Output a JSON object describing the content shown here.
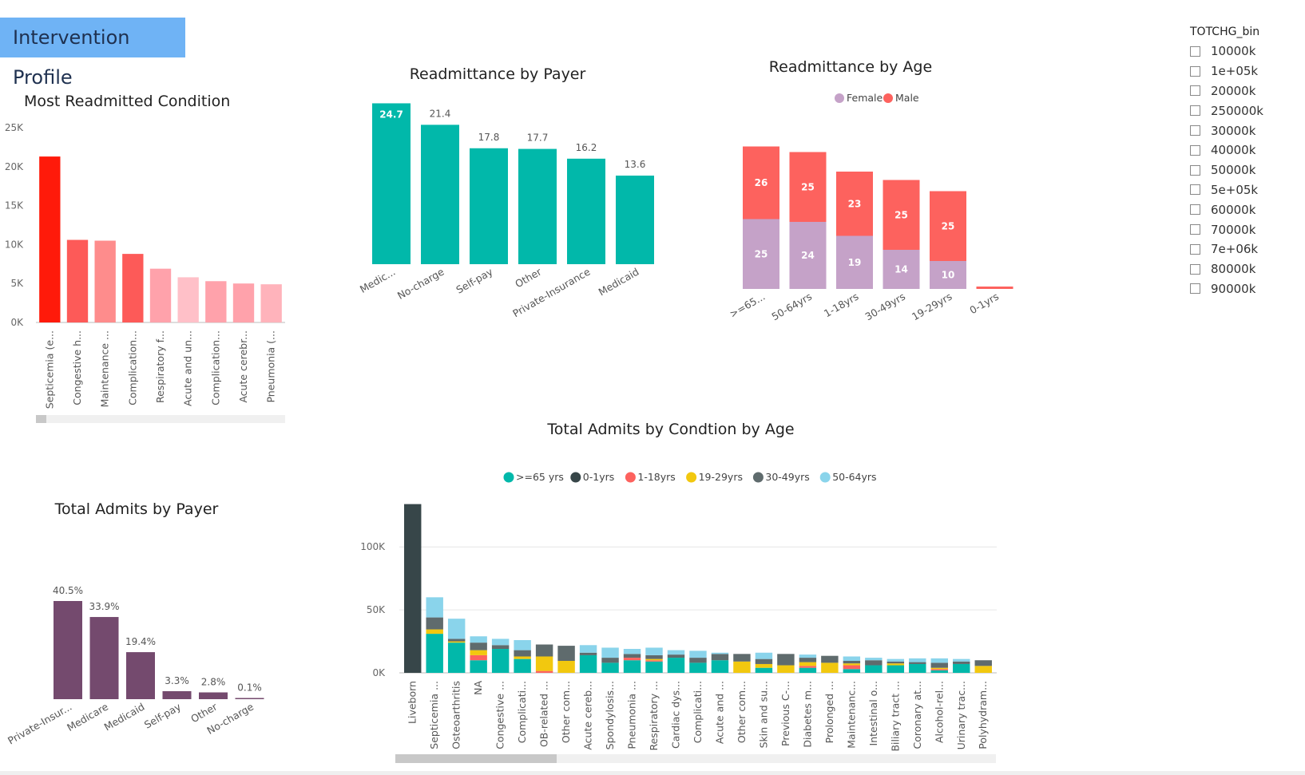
{
  "page": {
    "title": "Intervention Profile"
  },
  "slicer": {
    "title": "TOTCHG_bin",
    "items": [
      "10000k",
      "1e+05k",
      "20000k",
      "250000k",
      "30000k",
      "40000k",
      "50000k",
      "5e+05k",
      "60000k",
      "70000k",
      "7e+06k",
      "80000k",
      "90000k"
    ]
  },
  "colors": {
    "teal": "#01b8aa",
    "purple": "#744a6e",
    "male": "#fd625e",
    "female": "#c5a2c8"
  },
  "chart_data": [
    {
      "id": "most-readmitted",
      "type": "bar",
      "title": "Most Readmitted Condition",
      "categories": [
        "Septicemia (e...",
        "Congestive h...",
        "Maintenance ...",
        "Complication...",
        "Respiratory f...",
        "Acute and un...",
        "Complication...",
        "Acute cerebr...",
        "Pneumonia (..."
      ],
      "values": [
        21300,
        10600,
        10500,
        8800,
        6900,
        5800,
        5300,
        5000,
        4900
      ],
      "colors": [
        "#ff1a0a",
        "#fd5a58",
        "#fe8c8c",
        "#fd5a58",
        "#ffa2ab",
        "#ffc0c8",
        "#ffa2ab",
        "#ffa2ab",
        "#ffb3bb"
      ],
      "yticks": [
        "0K",
        "5K",
        "10K",
        "15K",
        "20K",
        "25K"
      ],
      "ylim": [
        0,
        25000
      ],
      "grid": false
    },
    {
      "id": "readmit-payer",
      "type": "bar",
      "title": "Readmittance by Payer",
      "categories": [
        "Medic...",
        "No-charge",
        "Self-pay",
        "Other",
        "Private-Insurance",
        "Medicaid"
      ],
      "values": [
        24.7,
        21.4,
        17.8,
        17.7,
        16.2,
        13.6
      ],
      "labels": [
        "24.7",
        "21.4",
        "17.8",
        "17.7",
        "16.2",
        "13.6"
      ],
      "ylim": [
        0,
        25
      ]
    },
    {
      "id": "readmit-age",
      "type": "bar",
      "stacked": true,
      "title": "Readmittance by Age",
      "legend": [
        "Female",
        "Male"
      ],
      "legend_position": "top",
      "categories": [
        ">=65...",
        "50-64yrs",
        "1-18yrs",
        "30-49yrs",
        "19-29yrs",
        "0-1yrs"
      ],
      "series": [
        {
          "name": "Female",
          "values": [
            25,
            24,
            19,
            14,
            10,
            0
          ],
          "labels": [
            "25",
            "24",
            "19",
            "14",
            "10",
            ""
          ]
        },
        {
          "name": "Male",
          "values": [
            26,
            25,
            23,
            25,
            25,
            1
          ],
          "labels": [
            "26",
            "25",
            "23",
            "25",
            "25",
            ""
          ]
        }
      ],
      "ylim": [
        0,
        51
      ]
    },
    {
      "id": "admits-payer",
      "type": "bar",
      "title": "Total Admits by Payer",
      "categories": [
        "Private-Insur...",
        "Medicare",
        "Medicaid",
        "Self-pay",
        "Other",
        "No-charge"
      ],
      "values": [
        40.5,
        33.9,
        19.4,
        3.3,
        2.8,
        0.1
      ],
      "labels": [
        "40.5%",
        "33.9%",
        "19.4%",
        "3.3%",
        "2.8%",
        "0.1%"
      ],
      "ylim": [
        0,
        40.5
      ]
    },
    {
      "id": "admits-condition-age",
      "type": "bar",
      "stacked": true,
      "title": "Total Admits by Condtion by Age",
      "legend": [
        ">=65 yrs",
        "0-1yrs",
        "1-18yrs",
        "19-29yrs",
        "30-49yrs",
        "50-64yrs"
      ],
      "legend_position": "top",
      "yticks": [
        "0K",
        "50K",
        "100K"
      ],
      "ylim": [
        0,
        135000
      ],
      "grid": true,
      "categories": [
        "Liveborn",
        "Septicemia ...",
        "Osteoarthritis",
        "NA",
        "Congestive ...",
        "Complicati...",
        "OB-related ...",
        "Other com...",
        "Acute cereb...",
        "Spondylosis...",
        "Pneumonia ...",
        "Respiratory ...",
        "Cardiac dys...",
        "Complicati...",
        "Acute and ...",
        "Other com...",
        "Skin and su...",
        "Previous C-...",
        "Diabetes m...",
        "Prolonged ...",
        "Maintenanc...",
        "Intestinal o...",
        "Biliary tract ...",
        "Coronary at...",
        "Alcohol-rel...",
        "Urinary trac...",
        "Polyhydram..."
      ],
      "series": [
        {
          "name": ">=65 yrs",
          "values": [
            0,
            31000,
            24000,
            10000,
            19000,
            11000,
            0,
            0,
            14000,
            8000,
            10000,
            9000,
            12000,
            8000,
            10000,
            0,
            4000,
            0,
            4000,
            0,
            3000,
            6000,
            6000,
            7000,
            2000,
            7000,
            0
          ]
        },
        {
          "name": "0-1yrs",
          "values": [
            134000,
            0,
            0,
            0,
            0,
            0,
            0,
            0,
            0,
            0,
            0,
            0,
            0,
            0,
            0,
            0,
            0,
            0,
            0,
            0,
            0,
            0,
            0,
            0,
            0,
            0,
            0
          ]
        },
        {
          "name": "1-18yrs",
          "values": [
            0,
            0,
            0,
            4000,
            0,
            0,
            1500,
            0,
            0,
            0,
            2000,
            1000,
            0,
            0,
            0,
            0,
            0,
            0,
            1500,
            0,
            3000,
            0,
            0,
            0,
            1000,
            0,
            0
          ]
        },
        {
          "name": "19-29yrs",
          "values": [
            0,
            3500,
            1000,
            4000,
            0,
            2000,
            11500,
            9500,
            0,
            0,
            0,
            1000,
            0,
            0,
            0,
            9000,
            3000,
            6000,
            3000,
            8000,
            1500,
            0,
            1500,
            0,
            1000,
            0,
            5500
          ]
        },
        {
          "name": "30-49yrs",
          "values": [
            0,
            9500,
            2000,
            6000,
            3000,
            5000,
            9500,
            12000,
            2000,
            4000,
            3000,
            3000,
            2500,
            4000,
            5000,
            6000,
            4000,
            9000,
            3500,
            5500,
            2000,
            4000,
            1500,
            1500,
            4000,
            2000,
            4500
          ]
        },
        {
          "name": "50-64yrs",
          "values": [
            0,
            16000,
            16000,
            5000,
            5000,
            8000,
            0,
            0,
            6000,
            8000,
            4000,
            6000,
            3500,
            5500,
            1000,
            0,
            5000,
            0,
            2500,
            0,
            3500,
            2000,
            2000,
            3000,
            3500,
            2000,
            0
          ]
        }
      ],
      "series_colors": [
        "#01b8aa",
        "#374649",
        "#fd625e",
        "#f2c80f",
        "#5f6b6d",
        "#8ad4eb"
      ]
    }
  ]
}
